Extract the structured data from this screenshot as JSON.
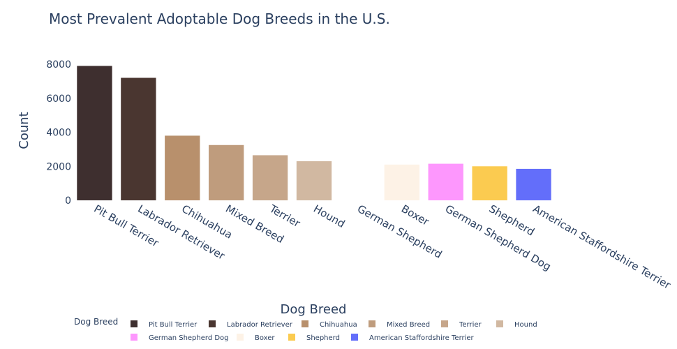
{
  "chart_data": {
    "type": "bar",
    "title": "Most Prevalent Adoptable Dog Breeds in the U.S.",
    "xlabel": "Dog Breed",
    "ylabel": "Count",
    "ylim": [
      0,
      8000
    ],
    "yticks": [
      0,
      2000,
      4000,
      6000,
      8000
    ],
    "categories": [
      "Pit Bull Terrier",
      "Labrador Retriever",
      "Chihuahua",
      "Mixed Breed",
      "Terrier",
      "Hound",
      "German Shepherd",
      "Boxer",
      "German Shepherd Dog",
      "Shepherd",
      "American Staffordshire Terrier"
    ],
    "values": [
      7900,
      7200,
      3800,
      3250,
      2650,
      2300,
      0,
      2100,
      2150,
      2000,
      1850
    ],
    "colors": [
      "#3e2f2f",
      "#4a3630",
      "#b8906c",
      "#bf9c7d",
      "#c6a68a",
      "#d1b8a1",
      "#ffffff",
      "#fdf2e6",
      "#fd97fd",
      "#fbcb50",
      "#636efa"
    ],
    "legend": {
      "title": "Dog Breed",
      "placement": "bottom",
      "entries": [
        {
          "label": "Pit Bull Terrier",
          "color": "#3e2f2f"
        },
        {
          "label": "Labrador Retriever",
          "color": "#4a3630"
        },
        {
          "label": "Chihuahua",
          "color": "#b8906c"
        },
        {
          "label": "Mixed Breed",
          "color": "#bf9c7d"
        },
        {
          "label": "Terrier",
          "color": "#c6a68a"
        },
        {
          "label": "Hound",
          "color": "#d1b8a1"
        },
        {
          "label": "German Shepherd Dog",
          "color": "#fd97fd"
        },
        {
          "label": "Boxer",
          "color": "#fdf2e6"
        },
        {
          "label": "Shepherd",
          "color": "#fbcb50"
        },
        {
          "label": "American Staffordshire Terrier",
          "color": "#636efa"
        }
      ]
    }
  }
}
